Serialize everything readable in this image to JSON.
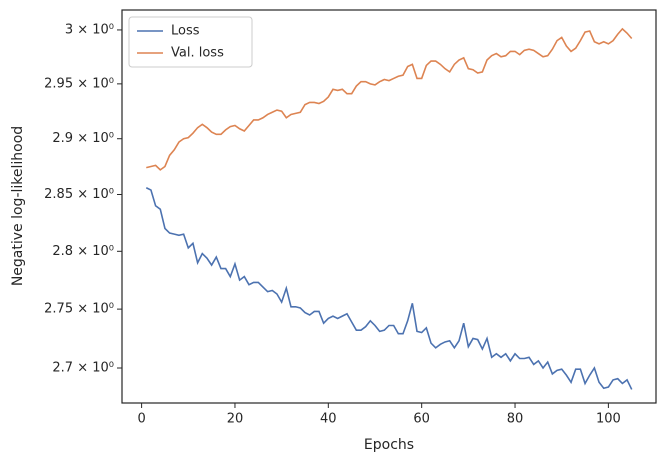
{
  "chart_data": {
    "type": "line",
    "xlabel": "Epochs",
    "ylabel": "Negative log-likelihood",
    "x": [
      1,
      2,
      3,
      4,
      5,
      6,
      7,
      8,
      9,
      10,
      11,
      12,
      13,
      14,
      15,
      16,
      17,
      18,
      19,
      20,
      21,
      22,
      23,
      24,
      25,
      26,
      27,
      28,
      29,
      30,
      31,
      32,
      33,
      34,
      35,
      36,
      37,
      38,
      39,
      40,
      41,
      42,
      43,
      44,
      45,
      46,
      47,
      48,
      49,
      50,
      51,
      52,
      53,
      54,
      55,
      56,
      57,
      58,
      59,
      60,
      61,
      62,
      63,
      64,
      65,
      66,
      67,
      68,
      69,
      70,
      71,
      72,
      73,
      74,
      75,
      76,
      77,
      78,
      79,
      80,
      81,
      82,
      83,
      84,
      85,
      86,
      87,
      88,
      89,
      90,
      91,
      92,
      93,
      94,
      95,
      96,
      97,
      98,
      99,
      100,
      101,
      102,
      103,
      104,
      105
    ],
    "series": [
      {
        "name": "Loss",
        "color": "#4c72b0",
        "values": [
          2.856,
          2.854,
          2.84,
          2.837,
          2.82,
          2.816,
          2.815,
          2.814,
          2.815,
          2.803,
          2.807,
          2.79,
          2.798,
          2.794,
          2.788,
          2.795,
          2.785,
          2.785,
          2.778,
          2.789,
          2.775,
          2.778,
          2.771,
          2.773,
          2.773,
          2.769,
          2.765,
          2.766,
          2.763,
          2.756,
          2.768,
          2.752,
          2.752,
          2.751,
          2.747,
          2.745,
          2.748,
          2.748,
          2.738,
          2.742,
          2.744,
          2.742,
          2.744,
          2.746,
          2.739,
          2.732,
          2.732,
          2.735,
          2.74,
          2.736,
          2.731,
          2.732,
          2.736,
          2.736,
          2.729,
          2.729,
          2.74,
          2.755,
          2.731,
          2.73,
          2.734,
          2.721,
          2.717,
          2.72,
          2.722,
          2.723,
          2.717,
          2.723,
          2.738,
          2.718,
          2.725,
          2.724,
          2.716,
          2.725,
          2.709,
          2.712,
          2.709,
          2.712,
          2.706,
          2.712,
          2.708,
          2.708,
          2.709,
          2.703,
          2.706,
          2.7,
          2.705,
          2.695,
          2.698,
          2.699,
          2.694,
          2.688,
          2.699,
          2.699,
          2.687,
          2.694,
          2.7,
          2.688,
          2.683,
          2.684,
          2.69,
          2.691,
          2.687,
          2.69,
          2.682
        ]
      },
      {
        "name": "Val. loss",
        "color": "#dd8452",
        "values": [
          2.874,
          2.875,
          2.876,
          2.872,
          2.875,
          2.885,
          2.89,
          2.897,
          2.9,
          2.901,
          2.905,
          2.91,
          2.913,
          2.91,
          2.906,
          2.904,
          2.904,
          2.908,
          2.911,
          2.912,
          2.909,
          2.907,
          2.912,
          2.917,
          2.917,
          2.919,
          2.922,
          2.924,
          2.926,
          2.925,
          2.919,
          2.922,
          2.923,
          2.924,
          2.931,
          2.933,
          2.933,
          2.932,
          2.934,
          2.938,
          2.945,
          2.944,
          2.945,
          2.941,
          2.941,
          2.948,
          2.952,
          2.952,
          2.95,
          2.949,
          2.952,
          2.954,
          2.953,
          2.955,
          2.957,
          2.958,
          2.966,
          2.968,
          2.955,
          2.955,
          2.967,
          2.971,
          2.971,
          2.968,
          2.964,
          2.961,
          2.968,
          2.972,
          2.974,
          2.964,
          2.963,
          2.96,
          2.961,
          2.972,
          2.976,
          2.978,
          2.975,
          2.976,
          2.98,
          2.98,
          2.977,
          2.981,
          2.982,
          2.981,
          2.978,
          2.975,
          2.976,
          2.982,
          2.99,
          2.993,
          2.985,
          2.98,
          2.983,
          2.99,
          2.998,
          2.999,
          2.989,
          2.987,
          2.989,
          2.987,
          2.99,
          2.996,
          3.001,
          2.997,
          2.992
        ]
      }
    ],
    "xlim": [
      -4.2,
      110.2
    ],
    "xticks": [
      0,
      20,
      40,
      60,
      80,
      100
    ],
    "ylim": [
      2.6707,
      3.0187
    ],
    "ylog": true,
    "yticks": [
      {
        "value": 2.7,
        "label": "2.7 × 10⁰"
      },
      {
        "value": 2.75,
        "label": "2.75 × 10⁰"
      },
      {
        "value": 2.8,
        "label": "2.8 × 10⁰"
      },
      {
        "value": 2.85,
        "label": "2.85 × 10⁰"
      },
      {
        "value": 2.9,
        "label": "2.9 × 10⁰"
      },
      {
        "value": 2.95,
        "label": "2.95 × 10⁰"
      },
      {
        "value": 3,
        "label": "3 × 10⁰"
      }
    ],
    "grid": false,
    "legend": "upper left"
  }
}
